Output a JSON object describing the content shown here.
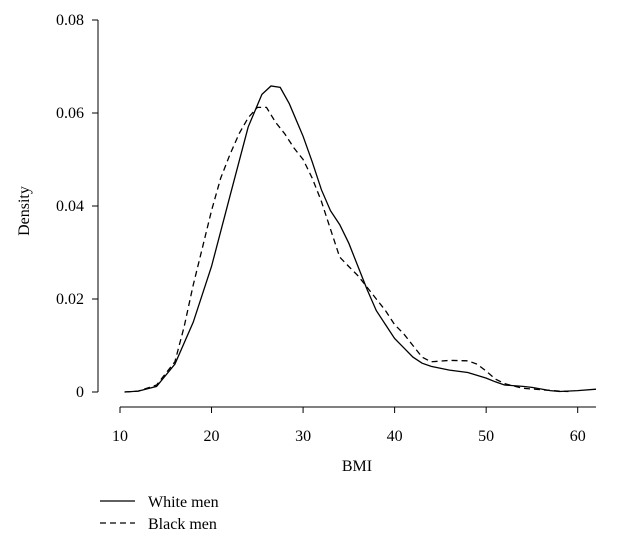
{
  "chart_data": {
    "type": "line",
    "title": "",
    "xlabel": "BMI",
    "ylabel": "Density",
    "xlim": [
      10,
      62
    ],
    "ylim": [
      0,
      0.08
    ],
    "xticks": [
      {
        "value": 10,
        "label": "10"
      },
      {
        "value": 20,
        "label": "20"
      },
      {
        "value": 30,
        "label": "30"
      },
      {
        "value": 40,
        "label": "40"
      },
      {
        "value": 50,
        "label": "50"
      },
      {
        "value": 60,
        "label": "60"
      }
    ],
    "yticks": [
      {
        "value": 0,
        "label": "0"
      },
      {
        "value": 0.02,
        "label": "0.02"
      },
      {
        "value": 0.04,
        "label": "0.04"
      },
      {
        "value": 0.06,
        "label": "0.06"
      },
      {
        "value": 0.08,
        "label": "0.08"
      }
    ],
    "grid": false,
    "legend": "bottom-left",
    "series": [
      {
        "name": "White men",
        "style": "solid",
        "color": "#000000",
        "points": [
          [
            10.5,
            0
          ],
          [
            12,
            0.0002
          ],
          [
            14,
            0.0012
          ],
          [
            16,
            0.006
          ],
          [
            18,
            0.015
          ],
          [
            20,
            0.027
          ],
          [
            22,
            0.042
          ],
          [
            24,
            0.057
          ],
          [
            25.5,
            0.064
          ],
          [
            26.5,
            0.0658
          ],
          [
            27.5,
            0.0655
          ],
          [
            28.5,
            0.062
          ],
          [
            30,
            0.055
          ],
          [
            31,
            0.0495
          ],
          [
            32,
            0.0435
          ],
          [
            33,
            0.039
          ],
          [
            34,
            0.036
          ],
          [
            35,
            0.032
          ],
          [
            36,
            0.027
          ],
          [
            37,
            0.022
          ],
          [
            38,
            0.0175
          ],
          [
            39,
            0.0145
          ],
          [
            40,
            0.0115
          ],
          [
            41,
            0.0095
          ],
          [
            42,
            0.0075
          ],
          [
            43,
            0.0062
          ],
          [
            44,
            0.0055
          ],
          [
            46,
            0.0047
          ],
          [
            48,
            0.0042
          ],
          [
            50,
            0.003
          ],
          [
            51,
            0.0022
          ],
          [
            52,
            0.0015
          ],
          [
            54,
            0.0012
          ],
          [
            55,
            0.001
          ],
          [
            57,
            0.0003
          ],
          [
            58,
            0.0001
          ],
          [
            60,
            0.0003
          ],
          [
            62,
            0.0006
          ]
        ]
      },
      {
        "name": "Black men",
        "style": "dashed",
        "color": "#000000",
        "points": [
          [
            10.5,
            0
          ],
          [
            12,
            0.0002
          ],
          [
            14,
            0.0015
          ],
          [
            16,
            0.0065
          ],
          [
            17,
            0.014
          ],
          [
            18,
            0.023
          ],
          [
            19,
            0.031
          ],
          [
            20,
            0.039
          ],
          [
            21,
            0.046
          ],
          [
            22,
            0.051
          ],
          [
            23,
            0.0555
          ],
          [
            24,
            0.059
          ],
          [
            25,
            0.0612
          ],
          [
            26,
            0.0612
          ],
          [
            27,
            0.058
          ],
          [
            28,
            0.0555
          ],
          [
            29,
            0.0525
          ],
          [
            30,
            0.05
          ],
          [
            31,
            0.046
          ],
          [
            32,
            0.041
          ],
          [
            33,
            0.035
          ],
          [
            34,
            0.029
          ],
          [
            35,
            0.027
          ],
          [
            36,
            0.025
          ],
          [
            37,
            0.0225
          ],
          [
            38,
            0.02
          ],
          [
            39,
            0.0175
          ],
          [
            40,
            0.0145
          ],
          [
            41,
            0.0125
          ],
          [
            42,
            0.01
          ],
          [
            43,
            0.0075
          ],
          [
            44,
            0.0065
          ],
          [
            46,
            0.0068
          ],
          [
            48,
            0.0067
          ],
          [
            49,
            0.006
          ],
          [
            50,
            0.0045
          ],
          [
            51,
            0.0028
          ],
          [
            52,
            0.0018
          ],
          [
            54,
            0.0008
          ],
          [
            56,
            0.0005
          ],
          [
            58,
            0.0002
          ],
          [
            59,
            0.0001
          ]
        ]
      }
    ]
  }
}
